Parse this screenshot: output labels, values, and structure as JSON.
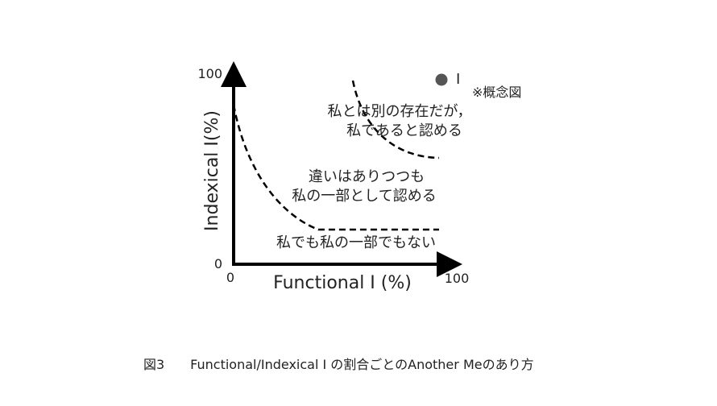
{
  "figure": {
    "y_axis": {
      "label": "Indexical I(%)",
      "max_label": "100",
      "min_label": "0"
    },
    "x_axis": {
      "label": "Functional I (%)",
      "min_label": "0",
      "max_label": "100"
    },
    "point_label": "I",
    "note": "※概念図",
    "regions": [
      {
        "lines": [
          "私とは別の存在だが，",
          "私であると認める"
        ]
      },
      {
        "lines": [
          "違いはありつつも",
          "私の一部として認める"
        ]
      },
      {
        "lines": [
          "私でも私の一部でもない"
        ]
      }
    ],
    "caption": "図3　　Functional/Indexical I の割合ごとのAnother Meのあり方"
  }
}
